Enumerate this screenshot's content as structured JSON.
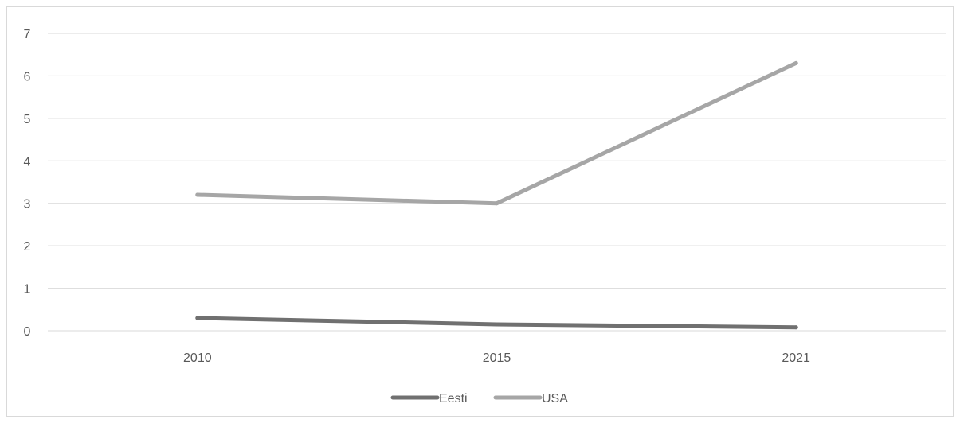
{
  "chart_data": {
    "type": "line",
    "title": "",
    "xlabel": "",
    "ylabel": "",
    "categories": [
      "2010",
      "2015",
      "2021"
    ],
    "ylim": [
      0,
      7
    ],
    "yticks": [
      "0",
      "1",
      "2",
      "3",
      "4",
      "5",
      "6",
      "7"
    ],
    "grid": true,
    "legend_position": "bottom",
    "series": [
      {
        "name": "Eesti",
        "values": [
          0.3,
          0.15,
          0.08
        ],
        "color": "#707070"
      },
      {
        "name": "USA",
        "values": [
          3.2,
          3.0,
          6.3
        ],
        "color": "#a6a6a6"
      }
    ]
  }
}
